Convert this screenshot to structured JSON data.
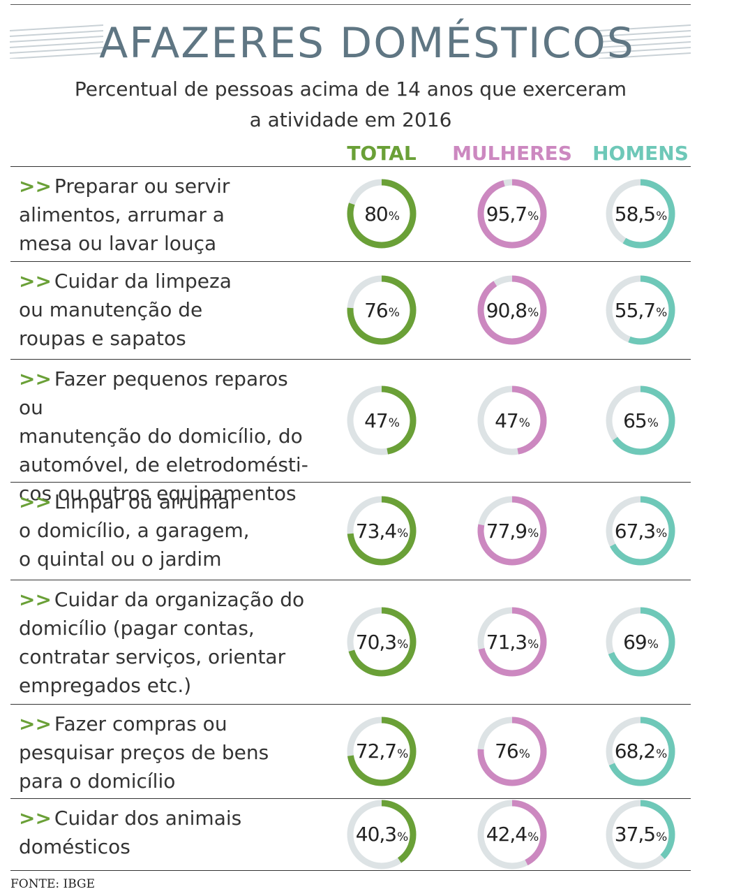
{
  "header": {
    "title": "AFAZERES DOMÉSTICOS",
    "subtitle_line1": "Percentual de pessoas acima de 14 anos que exerceram",
    "subtitle_line2": "a atividade em 2016"
  },
  "source": "FONTE: IBGE",
  "colors": {
    "total": "#6aa037",
    "mulheres": "#cc88c0",
    "homens": "#6ec8b8",
    "track": "#dde3e5",
    "title": "#5f7683"
  },
  "chart_data": {
    "type": "donut-table",
    "title": "AFAZERES DOMÉSTICOS",
    "subtitle": "Percentual de pessoas acima de 14 anos que exerceram a atividade em 2016",
    "unit": "%",
    "series": [
      {
        "key": "total",
        "name": "TOTAL"
      },
      {
        "key": "mulheres",
        "name": "MULHERES"
      },
      {
        "key": "homens",
        "name": "HOMENS"
      }
    ],
    "rows": [
      {
        "arrows": ">>",
        "lines": [
          "Preparar ou servir",
          "alimentos, arrumar a",
          "mesa ou lavar louça"
        ],
        "total": 80,
        "mulheres": 95.7,
        "homens": 58.5,
        "labels": {
          "total": "80",
          "mulheres": "95,7",
          "homens": "58,5"
        }
      },
      {
        "arrows": ">>",
        "lines": [
          "Cuidar da limpeza",
          "ou manutenção de",
          "roupas e sapatos"
        ],
        "total": 76,
        "mulheres": 90.8,
        "homens": 55.7,
        "labels": {
          "total": "76",
          "mulheres": "90,8",
          "homens": "55,7"
        }
      },
      {
        "arrows": ">>",
        "lines": [
          "Fazer pequenos reparos ou",
          "manutenção do domicílio, do",
          "automóvel, de eletrodomésti-",
          "cos ou outros equipamentos"
        ],
        "total": 47,
        "mulheres": 47,
        "homens": 65,
        "labels": {
          "total": "47",
          "mulheres": "47",
          "homens": "65"
        }
      },
      {
        "arrows": ">>",
        "lines": [
          "Limpar ou arrumar",
          "o domicílio, a garagem,",
          "o quintal ou o jardim"
        ],
        "total": 73.4,
        "mulheres": 77.9,
        "homens": 67.3,
        "labels": {
          "total": "73,4",
          "mulheres": "77,9",
          "homens": "67,3"
        }
      },
      {
        "arrows": ">>",
        "lines": [
          "Cuidar da organização do",
          "domicílio (pagar contas,",
          "contratar serviços, orientar",
          "empregados etc.)"
        ],
        "total": 70.3,
        "mulheres": 71.3,
        "homens": 69,
        "labels": {
          "total": "70,3",
          "mulheres": "71,3",
          "homens": "69"
        }
      },
      {
        "arrows": ">>",
        "lines": [
          "Fazer compras ou",
          "pesquisar preços de bens",
          "para o domicílio"
        ],
        "total": 72.7,
        "mulheres": 76,
        "homens": 68.2,
        "labels": {
          "total": "72,7",
          "mulheres": "76",
          "homens": "68,2"
        }
      },
      {
        "arrows": ">>",
        "lines": [
          "Cuidar dos animais",
          "domésticos"
        ],
        "total": 40.3,
        "mulheres": 42.4,
        "homens": 37.5,
        "labels": {
          "total": "40,3",
          "mulheres": "42,4",
          "homens": "37,5"
        }
      }
    ]
  }
}
